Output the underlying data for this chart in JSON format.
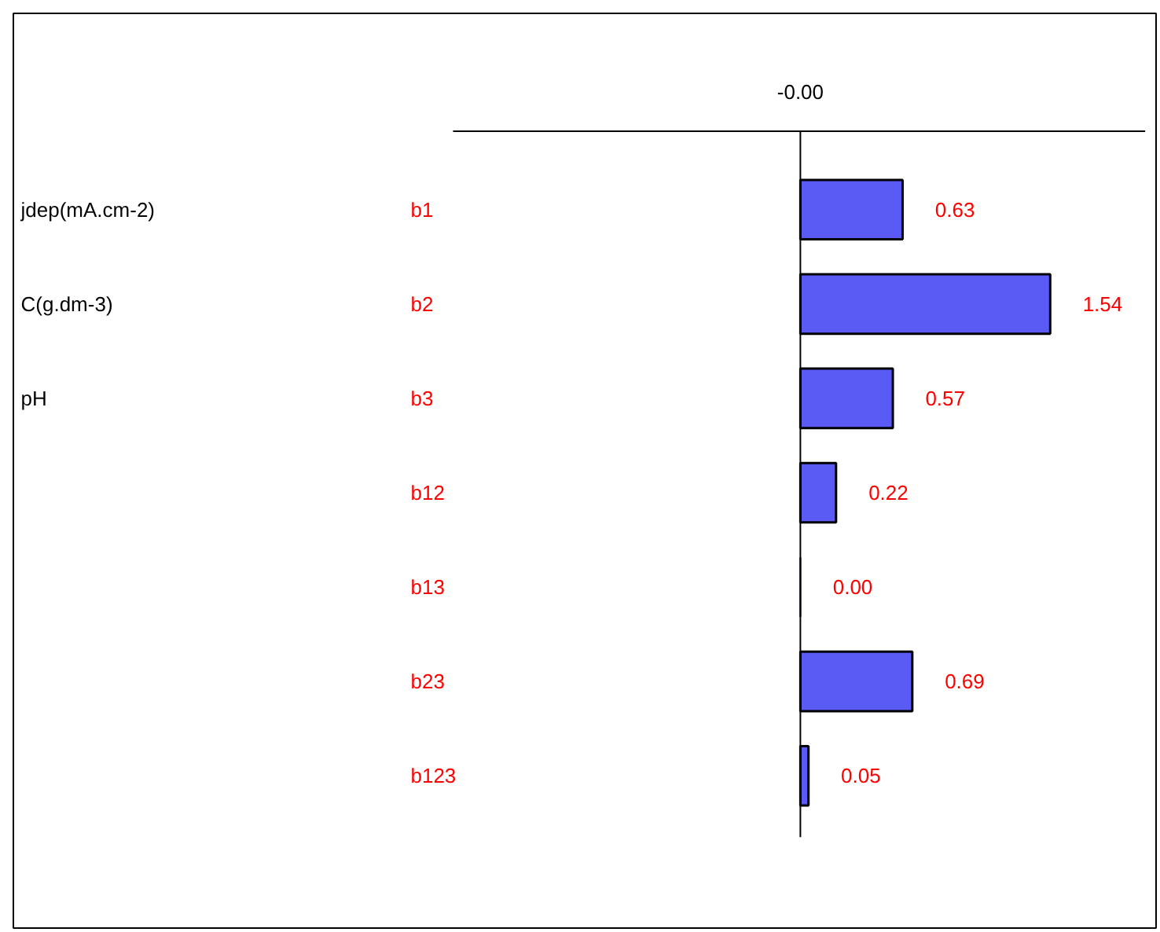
{
  "chart_data": {
    "type": "bar",
    "orientation": "horizontal",
    "categories": [
      "b1",
      "b2",
      "b3",
      "b12",
      "b13",
      "b23",
      "b123"
    ],
    "values": [
      0.63,
      1.54,
      0.57,
      0.22,
      0.0,
      0.69,
      0.05
    ],
    "color": "#5a5af5",
    "value_labels": [
      "0.63",
      "1.54",
      "0.57",
      "0.22",
      "0.00",
      "0.69",
      "0.05"
    ],
    "annotations": [
      "-0.00",
      "jdep(mA.cm-2)",
      "C(g.dm-3)",
      "pH"
    ]
  }
}
